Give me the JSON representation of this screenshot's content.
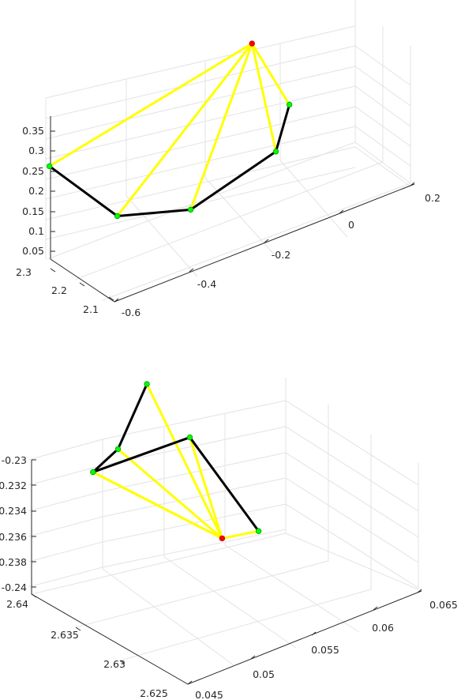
{
  "colors": {
    "background": "#ffffff",
    "grid": "#e3e3e3",
    "axis": "#262626",
    "skeleton": "#000000",
    "connection": "#ffff00",
    "joint": "#00ff00",
    "root": "#ff0000"
  },
  "chart_data": [
    {
      "type": "scatter3d",
      "axes": {
        "x": {
          "ticks": [
            "-0.6",
            "-0.4",
            "-0.2",
            "0",
            "0.2"
          ]
        },
        "y": {
          "ticks": [
            "2.1",
            "2.2",
            "2.3"
          ]
        },
        "z": {
          "ticks": [
            "0.05",
            "0.1",
            "0.15",
            "0.2",
            "0.25",
            "0.3",
            "0.35"
          ]
        }
      },
      "grid": true,
      "skeleton_color": "black",
      "connection_color": "yellow",
      "joints": [
        {
          "id": "j1",
          "x": -0.62,
          "y": 2.28,
          "z": 0.3,
          "color": "green"
        },
        {
          "id": "j2",
          "x": -0.49,
          "y": 2.22,
          "z": 0.16,
          "color": "green"
        },
        {
          "id": "j3",
          "x": -0.32,
          "y": 2.19,
          "z": 0.13,
          "color": "green"
        },
        {
          "id": "j4",
          "x": -0.05,
          "y": 2.24,
          "z": 0.15,
          "color": "green"
        },
        {
          "id": "j5",
          "x": 0.02,
          "y": 2.28,
          "z": 0.22,
          "color": "green"
        },
        {
          "id": "root",
          "x": -0.02,
          "y": 2.35,
          "z": 0.35,
          "color": "red"
        }
      ],
      "skeleton_edges": [
        [
          "j1",
          "j2"
        ],
        [
          "j2",
          "j3"
        ],
        [
          "j3",
          "j4"
        ],
        [
          "j4",
          "j5"
        ]
      ],
      "connection_edges": [
        [
          "root",
          "j1"
        ],
        [
          "root",
          "j2"
        ],
        [
          "root",
          "j3"
        ],
        [
          "root",
          "j4"
        ],
        [
          "root",
          "j5"
        ]
      ]
    },
    {
      "type": "scatter3d",
      "axes": {
        "x": {
          "ticks": [
            "0.045",
            "0.05",
            "0.055",
            "0.06",
            "0.065"
          ]
        },
        "y": {
          "ticks": [
            "2.625",
            "2.63",
            "2.635",
            "2.64"
          ]
        },
        "z": {
          "ticks": [
            "-0.24",
            "-0.238",
            "-0.236",
            "-0.234",
            "-0.232",
            "-0.23"
          ]
        }
      },
      "grid": true,
      "skeleton_color": "black",
      "connection_color": "yellow",
      "joints": [
        {
          "id": "k1",
          "x": 0.0507,
          "y": 2.6405,
          "z": -0.2328,
          "color": "green"
        },
        {
          "id": "k2",
          "x": 0.0532,
          "y": 2.6409,
          "z": -0.2321,
          "color": "green"
        },
        {
          "id": "k3",
          "x": 0.0571,
          "y": 2.6425,
          "z": -0.2292,
          "color": "green"
        },
        {
          "id": "k4",
          "x": 0.0573,
          "y": 2.6386,
          "z": -0.2316,
          "color": "green"
        },
        {
          "id": "k5",
          "x": 0.0548,
          "y": 2.6292,
          "z": -0.2336,
          "color": "green"
        },
        {
          "id": "root",
          "x": 0.0548,
          "y": 2.6327,
          "z": -0.2358,
          "color": "red"
        }
      ],
      "skeleton_edges": [
        [
          "k1",
          "k2"
        ],
        [
          "k2",
          "k3"
        ],
        [
          "k1",
          "k4"
        ],
        [
          "k4",
          "k5"
        ]
      ],
      "connection_edges": [
        [
          "root",
          "k1"
        ],
        [
          "root",
          "k2"
        ],
        [
          "root",
          "k3"
        ],
        [
          "root",
          "k4"
        ],
        [
          "k1",
          "root"
        ],
        [
          "root",
          "k5"
        ]
      ]
    }
  ]
}
